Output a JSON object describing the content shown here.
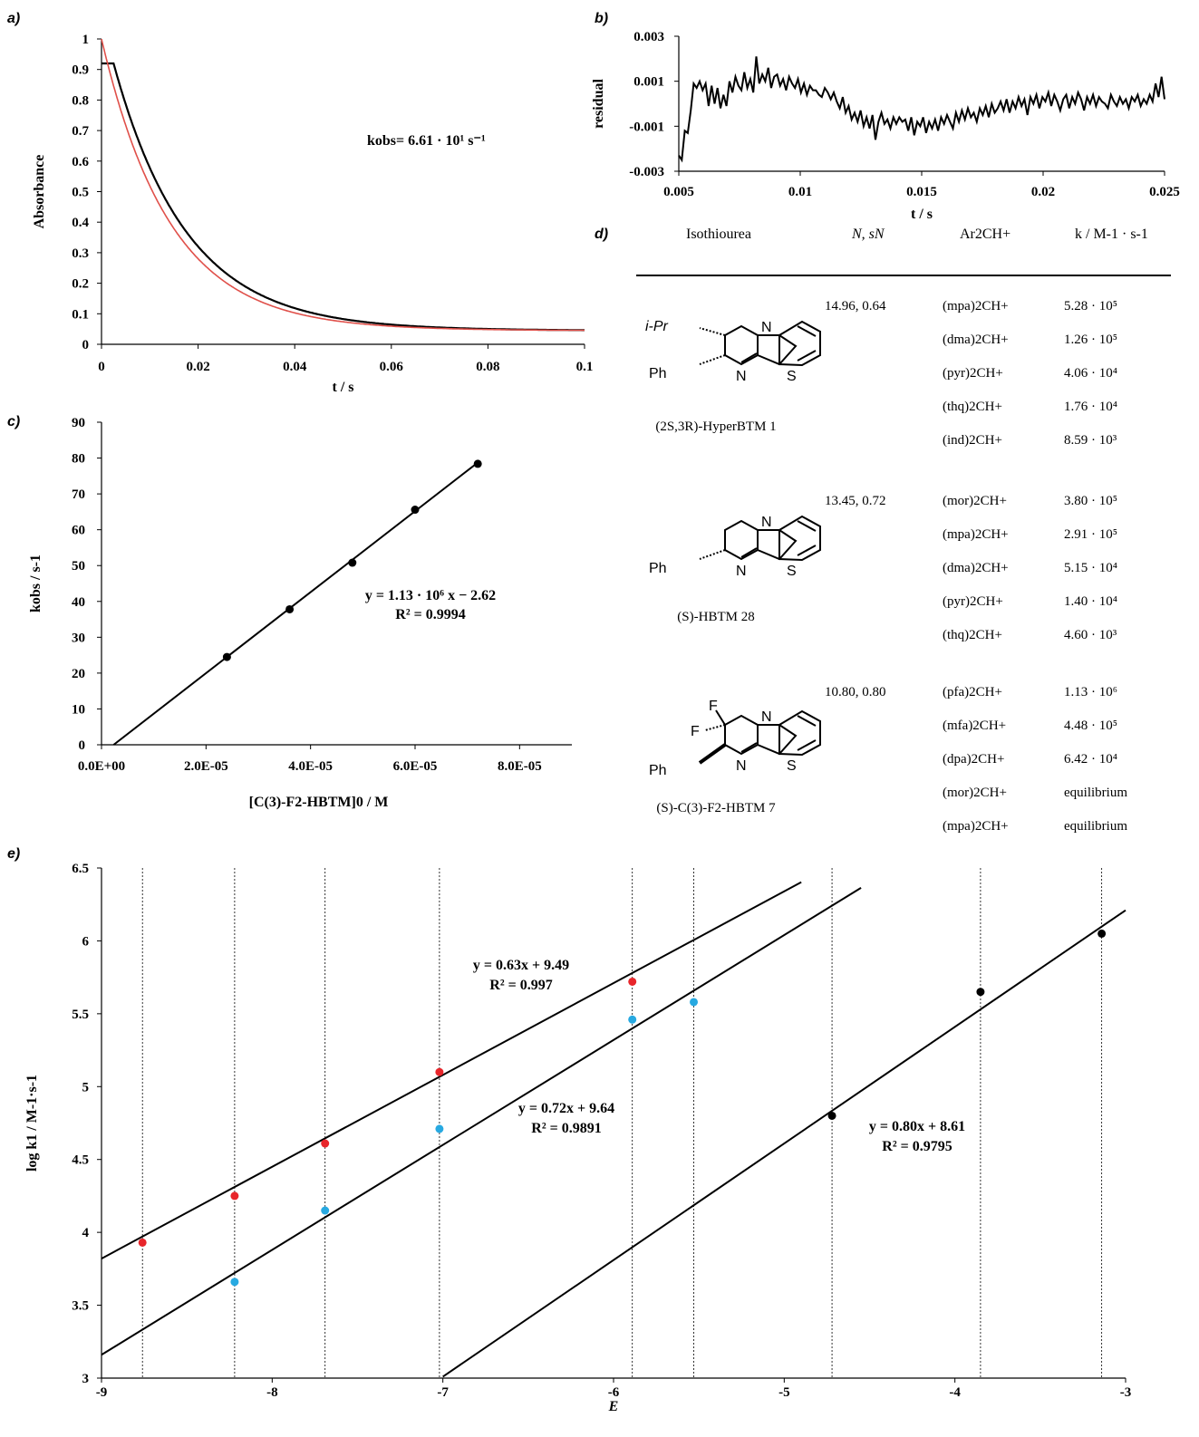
{
  "panels": {
    "a": "a)",
    "b": "b)",
    "c": "c)",
    "d": "d)",
    "e": "e)"
  },
  "chart_data": [
    {
      "id": "a",
      "type": "line",
      "ylabel": "Absorbance",
      "xlabel": "t / s",
      "xlim": [
        0,
        0.1
      ],
      "ylim": [
        0,
        1
      ],
      "xticks": [
        "0",
        "0.02",
        "0.04",
        "0.06",
        "0.08",
        "0.1"
      ],
      "yticks": [
        "0",
        "0.1",
        "0.2",
        "0.3",
        "0.4",
        "0.5",
        "0.6",
        "0.7",
        "0.8",
        "0.9",
        "1"
      ],
      "annotation": "kobs= 6.61 · 10¹ s⁻¹",
      "fit": {
        "A0": 0.92,
        "Ainf": 0.045,
        "k": 66.1,
        "t0": 0.0025
      },
      "series": [
        {
          "color": "#000000"
        },
        {
          "color": "#e0504a"
        }
      ]
    },
    {
      "id": "b",
      "type": "line",
      "ylabel": "residual",
      "xlabel": "t / s",
      "xlim": [
        0.005,
        0.025
      ],
      "ylim": [
        -0.003,
        0.003
      ],
      "xticks": [
        "0.005",
        "0.01",
        "0.015",
        "0.02",
        "0.025"
      ],
      "yticks": [
        "-0.003",
        "-0.001",
        "0.001",
        "0.003"
      ],
      "y": [
        -0.0023,
        -0.0025,
        -0.0012,
        -0.0013,
        -0.0003,
        0.0009,
        0.0007,
        0.001,
        0.0006,
        0.0009,
        -0.0001,
        0.0008,
        0.0,
        0.0007,
        -0.0002,
        0.0004,
        -0.0001,
        0.001,
        0.0005,
        0.0012,
        0.0008,
        0.0006,
        0.0014,
        0.0007,
        0.0011,
        0.0005,
        0.0021,
        0.0009,
        0.0013,
        0.001,
        0.0016,
        0.0007,
        0.0012,
        0.0013,
        0.0008,
        0.0011,
        0.0006,
        0.0012,
        0.0009,
        0.0007,
        0.0011,
        0.0005,
        0.0009,
        0.0004,
        0.0008,
        0.0006,
        0.0006,
        0.0004,
        0.0003,
        0.0007,
        0.0005,
        0.0002,
        0.0005,
        0.0001,
        -0.0002,
        0.0003,
        -0.0004,
        -0.0001,
        -0.0007,
        -0.0004,
        -0.0008,
        -0.0003,
        -0.001,
        -0.0006,
        -0.0011,
        -0.0005,
        -0.0016,
        -0.0008,
        -0.0004,
        -0.0009,
        -0.0007,
        -0.0011,
        -0.0006,
        -0.0009,
        -0.0006,
        -0.0008,
        -0.0007,
        -0.0012,
        -0.0006,
        -0.0014,
        -0.0008,
        -0.001,
        -0.0006,
        -0.0013,
        -0.0008,
        -0.0011,
        -0.0007,
        -0.0012,
        -0.0006,
        -0.0009,
        -0.0005,
        -0.0008,
        -0.0011,
        -0.0004,
        -0.0008,
        -0.0003,
        -0.0007,
        -0.0002,
        -0.0006,
        -0.0004,
        -0.0008,
        -0.0002,
        -0.0005,
        -0.0001,
        -0.0006,
        0.0,
        -0.0004,
        -0.0002,
        0.0001,
        -0.0003,
        0.0002,
        -0.0004,
        0.0001,
        -0.0002,
        0.0003,
        -0.0001,
        0.0002,
        -0.0005,
        0.0003,
        0.0,
        0.0004,
        -0.0002,
        0.0003,
        0.0001,
        0.0005,
        -0.0001,
        0.0004,
        0.0001,
        -0.0003,
        0.0002,
        0.0004,
        -0.0002,
        0.0003,
        0.0,
        0.0005,
        0.0002,
        -0.0003,
        0.0003,
        0.0,
        0.0004,
        -0.0001,
        0.0003,
        0.0001,
        0.0,
        -0.0002,
        0.0004,
        0.0001,
        -0.0001,
        0.0003,
        0.0,
        0.0002,
        -0.0002,
        0.0003,
        0.0001,
        0.0004,
        -0.0001,
        0.0002,
        0.0,
        0.0004,
        0.0001,
        0.0009,
        0.0003,
        0.0012,
        0.0002
      ]
    },
    {
      "id": "c",
      "type": "scatter",
      "ylabel": "kobs / s-1",
      "xlabel": "[C(3)-F2-HBTM]0 / M",
      "xlim": [
        0,
        9e-05
      ],
      "ylim": [
        0,
        90
      ],
      "xticks": [
        "0.0E+00",
        "2.0E-05",
        "4.0E-05",
        "6.0E-05",
        "8.0E-05"
      ],
      "yticks": [
        "0",
        "10",
        "20",
        "30",
        "40",
        "50",
        "60",
        "70",
        "80",
        "90"
      ],
      "x": [
        2.4e-05,
        3.6e-05,
        4.8e-05,
        6e-05,
        7.2e-05
      ],
      "y": [
        24.5,
        37.8,
        50.8,
        65.6,
        78.4
      ],
      "fit": {
        "slope": 1130000,
        "intercept": -2.62
      },
      "annotation": [
        "y = 1.13 · 10⁶ x − 2.62",
        "R² = 0.9994"
      ]
    },
    {
      "id": "e",
      "type": "scatter",
      "ylabel": "log k1 / M-1·s-1",
      "xlabel": "E",
      "xlim": [
        -9,
        -3
      ],
      "ylim": [
        3,
        6.5
      ],
      "xticks": [
        "-9",
        "-8",
        "-7",
        "-6",
        "-5",
        "-4",
        "-3"
      ],
      "yticks": [
        "3",
        "3.5",
        "4",
        "4.5",
        "5",
        "5.5",
        "6",
        "6.5"
      ],
      "vlines": [
        -8.76,
        -8.22,
        -7.69,
        -7.02,
        -5.89,
        -5.53,
        -4.72,
        -3.85,
        -3.14
      ],
      "series": [
        {
          "color": "#e8262b",
          "x": [
            -8.76,
            -8.22,
            -7.69,
            -7.02,
            -5.89
          ],
          "y": [
            3.93,
            4.25,
            4.61,
            5.1,
            5.72
          ],
          "fit": {
            "slope": 0.63,
            "intercept": 9.49,
            "xr": [
              -9,
              -4.9
            ]
          }
        },
        {
          "color": "#27a9e1",
          "x": [
            -8.22,
            -7.69,
            -7.02,
            -5.89,
            -5.53
          ],
          "y": [
            3.66,
            4.15,
            4.71,
            5.46,
            5.58
          ],
          "fit": {
            "slope": 0.72,
            "intercept": 9.64,
            "xr": [
              -9,
              -4.55
            ]
          }
        },
        {
          "color": "#000000",
          "x": [
            -4.72,
            -3.85,
            -3.14
          ],
          "y": [
            4.8,
            5.65,
            6.05
          ],
          "fit": {
            "slope": 0.8,
            "intercept": 8.61,
            "xr": [
              -7.0,
              -3.0
            ]
          }
        }
      ],
      "annotations": [
        {
          "eq": "y = 0.63x + 9.49",
          "r2": "R² = 0.997"
        },
        {
          "eq": "y = 0.72x + 9.64",
          "r2": "R² = 0.9891"
        },
        {
          "eq": "y = 0.80x + 8.61",
          "r2": "R² = 0.9795"
        }
      ]
    }
  ],
  "table": {
    "headers": {
      "isothiourea": "Isothiourea",
      "n": "N, sN",
      "ar": "Ar2CH+",
      "k": "k / M-1 · s-1"
    },
    "groups": [
      {
        "caption": "(2S,3R)-HyperBTM 1",
        "params": "14.96, 0.64",
        "rows": [
          {
            "ar": "(mpa)2CH+",
            "k": "5.28 · 10⁵"
          },
          {
            "ar": "(dma)2CH+",
            "k": "1.26 · 10⁵"
          },
          {
            "ar": "(pyr)2CH+",
            "k": "4.06 · 10⁴"
          },
          {
            "ar": "(thq)2CH+",
            "k": "1.76 · 10⁴"
          },
          {
            "ar": "(ind)2CH+",
            "k": "8.59 · 10³"
          }
        ]
      },
      {
        "caption": "(S)-HBTM 28",
        "params": "13.45, 0.72",
        "rows": [
          {
            "ar": "(mor)2CH+",
            "k": "3.80 · 10⁵"
          },
          {
            "ar": "(mpa)2CH+",
            "k": "2.91 · 10⁵"
          },
          {
            "ar": "(dma)2CH+",
            "k": "5.15 · 10⁴"
          },
          {
            "ar": "(pyr)2CH+",
            "k": "1.40 · 10⁴"
          },
          {
            "ar": "(thq)2CH+",
            "k": "4.60 · 10³"
          }
        ]
      },
      {
        "caption": "(S)-C(3)-F2-HBTM 7",
        "params": "10.80, 0.80",
        "rows": [
          {
            "ar": "(pfa)2CH+",
            "k": "1.13 · 10⁶"
          },
          {
            "ar": "(mfa)2CH+",
            "k": "4.48 · 10⁵"
          },
          {
            "ar": "(dpa)2CH+",
            "k": "6.42 · 10⁴"
          },
          {
            "ar": "(mor)2CH+",
            "k": "equilibrium"
          },
          {
            "ar": "(mpa)2CH+",
            "k": "equilibrium"
          }
        ]
      }
    ],
    "structure_labels": {
      "ipr": "i-Pr",
      "ph": "Ph",
      "n": "N",
      "s": "S",
      "f": "F"
    }
  }
}
